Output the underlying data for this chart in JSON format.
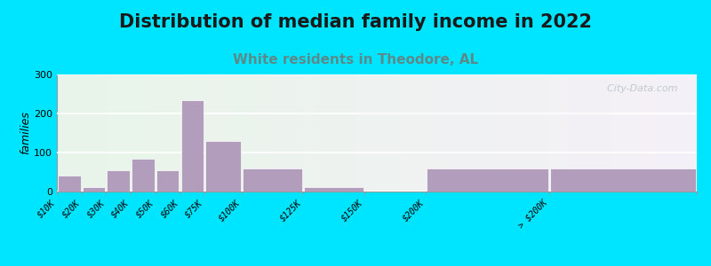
{
  "title": "Distribution of median family income in 2022",
  "subtitle": "White residents in Theodore, AL",
  "ylabel": "families",
  "categories": [
    "$10K",
    "$20K",
    "$30K",
    "$40K",
    "$50K",
    "$60K",
    "$75K",
    "$100K",
    "$125K",
    "$150K",
    "$200K",
    "> $200K"
  ],
  "values": [
    40,
    12,
    55,
    85,
    55,
    235,
    130,
    60,
    12,
    0,
    60,
    60
  ],
  "bar_color": "#b39dbd",
  "bar_edge_color": "white",
  "ylim": [
    0,
    300
  ],
  "yticks": [
    0,
    100,
    200,
    300
  ],
  "background_outer": "#00e5ff",
  "title_fontsize": 15,
  "subtitle_fontsize": 11,
  "subtitle_color": "#5a8a8a",
  "watermark": "  City-Data.com",
  "watermark_color": "#aab8c0",
  "left_edges": [
    0,
    10,
    20,
    30,
    40,
    50,
    60,
    75,
    100,
    125,
    150,
    200
  ],
  "right_edges": [
    10,
    20,
    30,
    40,
    50,
    60,
    75,
    100,
    125,
    150,
    200,
    260
  ],
  "tick_positions": [
    0,
    10,
    20,
    30,
    40,
    50,
    60,
    75,
    100,
    125,
    150,
    200,
    260
  ]
}
